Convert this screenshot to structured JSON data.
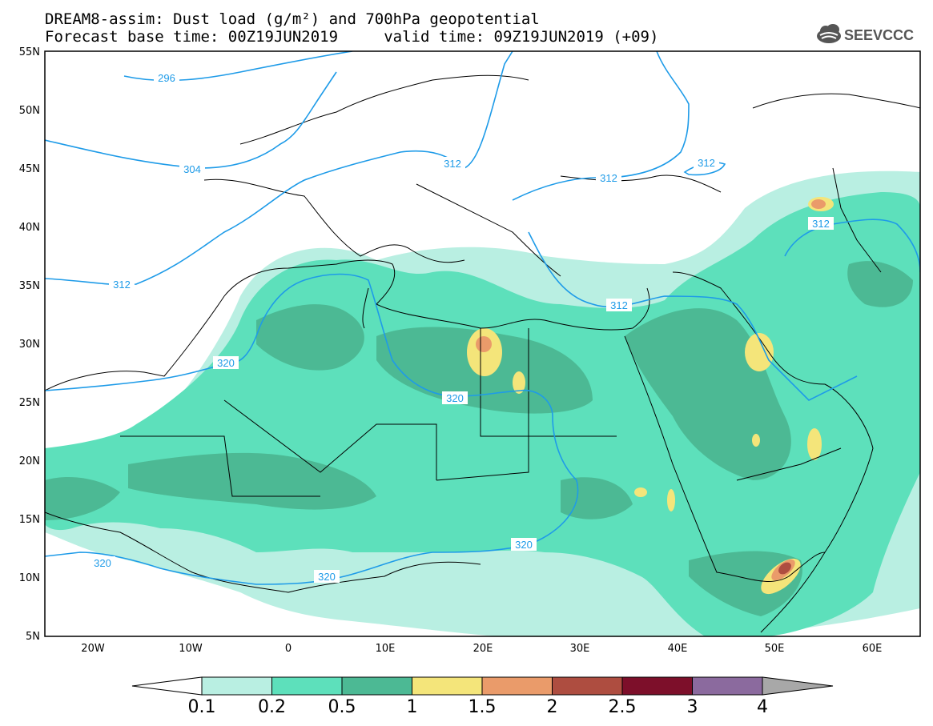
{
  "header": {
    "title_line1": "DREAM8-assim: Dust load (g/m²) and 700hPa geopotential",
    "title_line2": "Forecast base time: 00Z19JUN2019     valid time: 09Z19JUN2019 (+09)"
  },
  "logo": {
    "text": "SEEVCCC",
    "icon": "cloud-logo-icon"
  },
  "axes": {
    "lat_labels": [
      "55N",
      "50N",
      "45N",
      "40N",
      "35N",
      "30N",
      "25N",
      "20N",
      "15N",
      "10N",
      "5N"
    ],
    "lon_labels": [
      "20W",
      "10W",
      "0",
      "10E",
      "20E",
      "30E",
      "40E",
      "50E",
      "60E"
    ],
    "lat_range": [
      5,
      55
    ],
    "lon_range": [
      -25,
      65
    ]
  },
  "contours": {
    "color": "#1e9be8",
    "labels": [
      {
        "text": "296"
      },
      {
        "text": "304"
      },
      {
        "text": "312"
      },
      {
        "text": "312"
      },
      {
        "text": "312"
      },
      {
        "text": "312"
      },
      {
        "text": "312"
      },
      {
        "text": "312"
      },
      {
        "text": "320"
      },
      {
        "text": "320"
      },
      {
        "text": "320"
      },
      {
        "text": "320"
      },
      {
        "text": "320"
      }
    ]
  },
  "colorbar": {
    "labels": [
      "0.1",
      "0.2",
      "0.5",
      "1",
      "1.5",
      "2",
      "2.5",
      "3",
      "4"
    ],
    "colors": [
      "#b9efe2",
      "#5de0bb",
      "#4cb994",
      "#f4e57a",
      "#ea9b6a",
      "#ae4d40",
      "#7d0f2a",
      "#8b6a9e",
      "#a8a8a8"
    ]
  },
  "dust_colors": {
    "level1": "#b9efe2",
    "level2": "#5de0bb",
    "level3": "#4cb994",
    "level4": "#f4e57a",
    "level5": "#ea9b6a",
    "level6": "#ae4d40",
    "level7": "#7d0f2a"
  }
}
